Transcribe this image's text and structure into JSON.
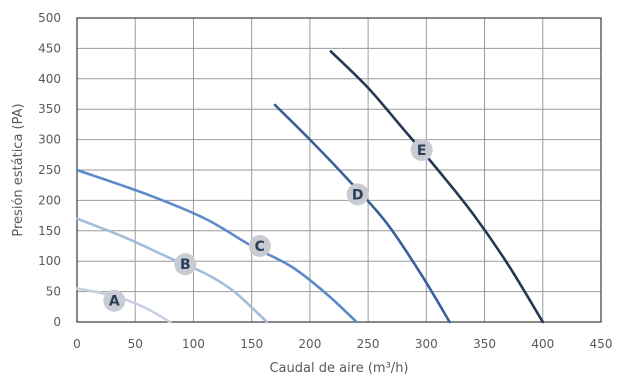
{
  "chart_data": {
    "type": "line",
    "xlabel": "Caudal de aire (m³/h)",
    "ylabel": "Presión estática (PA)",
    "xlim": [
      0,
      450
    ],
    "ylim": [
      0,
      500
    ],
    "x_ticks": [
      "0",
      "50",
      "100",
      "150",
      "200",
      "250",
      "300",
      "350",
      "400",
      "450"
    ],
    "y_ticks": [
      "0",
      "50",
      "100",
      "150",
      "200",
      "250",
      "300",
      "350",
      "400",
      "450",
      "500"
    ],
    "grid": true,
    "series": [
      {
        "name": "A",
        "color": "#c5d0e0",
        "points": [
          [
            0,
            55
          ],
          [
            20,
            48
          ],
          [
            40,
            38
          ],
          [
            60,
            22
          ],
          [
            80,
            0
          ]
        ],
        "label_at": [
          32,
          35
        ]
      },
      {
        "name": "B",
        "color": "#a3bcd8",
        "points": [
          [
            0,
            170
          ],
          [
            40,
            140
          ],
          [
            80,
            105
          ],
          [
            110,
            80
          ],
          [
            135,
            50
          ],
          [
            163,
            0
          ]
        ],
        "label_at": [
          93,
          95
        ]
      },
      {
        "name": "C",
        "color": "#5b8ac8",
        "points": [
          [
            0,
            250
          ],
          [
            60,
            210
          ],
          [
            110,
            170
          ],
          [
            150,
            125
          ],
          [
            185,
            90
          ],
          [
            215,
            45
          ],
          [
            240,
            0
          ]
        ],
        "label_at": [
          157,
          125
        ]
      },
      {
        "name": "D",
        "color": "#3a5f99",
        "points": [
          [
            170,
            357
          ],
          [
            200,
            300
          ],
          [
            230,
            240
          ],
          [
            265,
            165
          ],
          [
            295,
            80
          ],
          [
            320,
            0
          ]
        ],
        "label_at": [
          241,
          210
        ]
      },
      {
        "name": "E",
        "color": "#263654",
        "points": [
          [
            218,
            445
          ],
          [
            250,
            385
          ],
          [
            280,
            318
          ],
          [
            310,
            250
          ],
          [
            340,
            178
          ],
          [
            370,
            95
          ],
          [
            400,
            0
          ]
        ],
        "label_at": [
          296,
          283
        ]
      }
    ]
  }
}
